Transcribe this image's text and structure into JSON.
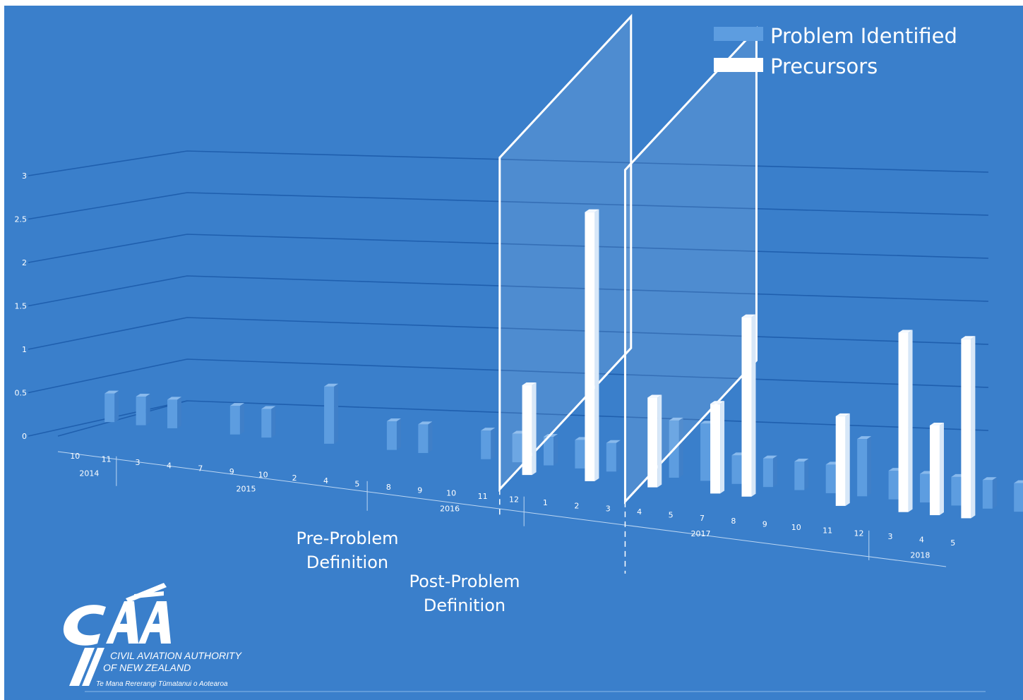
{
  "chart_data": {
    "type": "bar",
    "subtype": "3d-column",
    "title": "",
    "xlabel": "",
    "ylabel": "",
    "ylim": [
      0,
      3
    ],
    "yticks": [
      "0",
      "0.5",
      "1",
      "1.5",
      "2",
      "2.5",
      "3"
    ],
    "grid": true,
    "legend_position": "top-right",
    "years": [
      {
        "label": "2014",
        "months": [
          "10",
          "11"
        ]
      },
      {
        "label": "2015",
        "months": [
          "3",
          "4",
          "7",
          "9",
          "10",
          "2",
          "4",
          "5"
        ]
      },
      {
        "label": "2016",
        "months": [
          "8",
          "9",
          "10",
          "11",
          "12"
        ]
      },
      {
        "label": "2017",
        "months": [
          "1",
          "2",
          "3",
          "4",
          "5",
          "7",
          "8",
          "9",
          "10",
          "11",
          "12"
        ]
      },
      {
        "label": "2018",
        "months": [
          "3",
          "4",
          "5"
        ]
      }
    ],
    "series": [
      {
        "name": "Problem Identified",
        "color": "#5d9de0",
        "values": [
          1,
          1,
          1,
          0,
          1,
          1,
          0,
          2,
          0,
          1,
          1,
          0,
          1,
          1,
          1,
          1,
          1,
          0,
          2,
          2,
          1,
          1,
          1,
          1,
          2,
          1,
          1,
          1,
          1,
          1,
          1
        ]
      },
      {
        "name": "Precursors",
        "color": "#ffffff",
        "values": [
          0,
          0,
          0,
          0,
          0,
          0,
          0,
          0,
          0,
          0,
          0,
          0,
          0,
          1,
          0,
          3,
          0,
          1,
          0,
          1,
          2,
          0,
          0,
          1,
          0,
          2,
          1,
          2,
          0,
          1,
          1
        ]
      }
    ],
    "annotations": [
      {
        "text_lines": [
          "Pre-Problem",
          "Definition"
        ],
        "after_category": "9"
      },
      {
        "text_lines": [
          "Post-Problem",
          "Definition"
        ],
        "after_category": "12"
      }
    ]
  },
  "logo": {
    "mark": "CAA",
    "name_line1": "CIVIL AVIATION AUTHORITY",
    "name_line2": "OF NEW ZEALAND",
    "tagline": "Te Mana Rererangi Tūmatanui o Aotearoa"
  },
  "colors": {
    "background": "#3a7fcb",
    "problem_identified": "#5d9de0",
    "precursors": "#ffffff"
  }
}
